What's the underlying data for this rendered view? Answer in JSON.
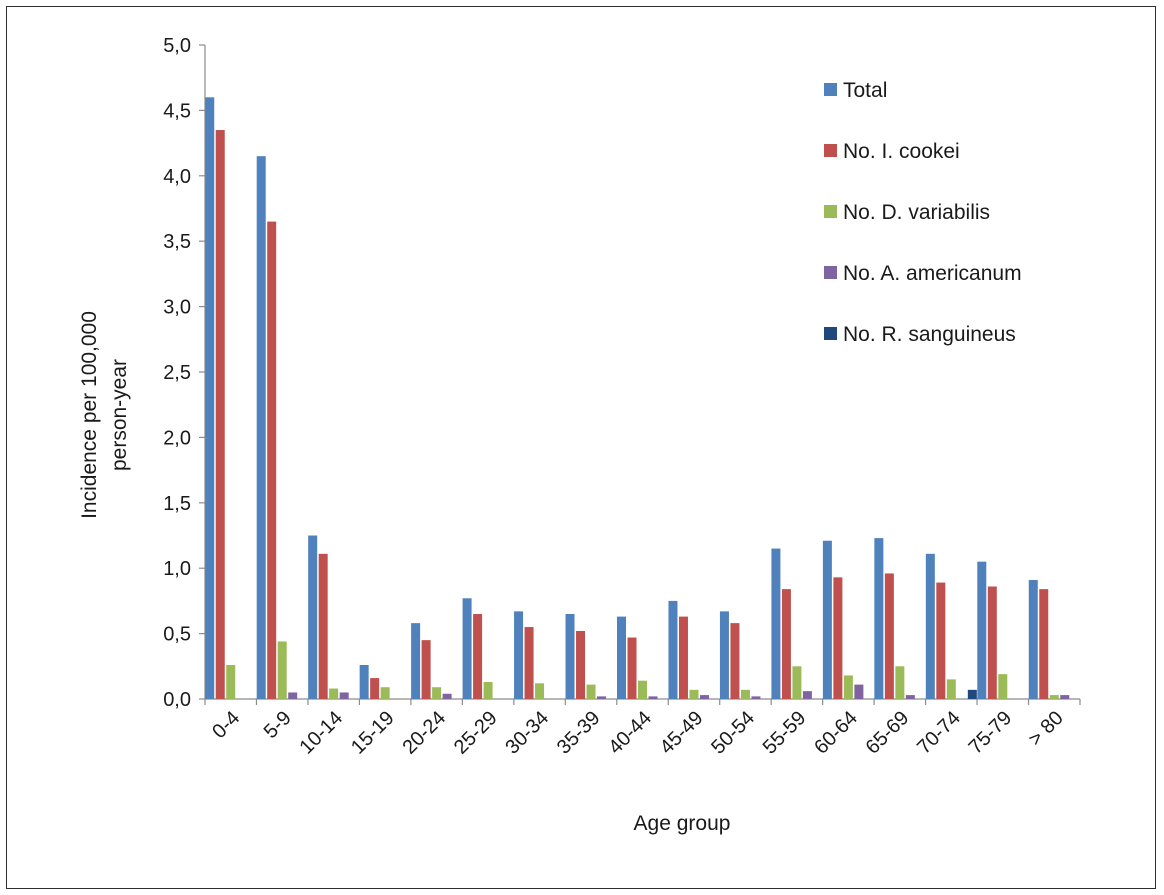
{
  "chart_data": {
    "type": "bar",
    "title": "",
    "xlabel": "Age group",
    "ylabel": [
      "Incidence per 100,000",
      "person-year"
    ],
    "ylim": [
      0,
      5.0
    ],
    "yticks": [
      "0,0",
      "0,5",
      "1,0",
      "1,5",
      "2,0",
      "2,5",
      "3,0",
      "3,5",
      "4,0",
      "4,5",
      "5,0"
    ],
    "grid": false,
    "legend_position": "top-right",
    "categories": [
      "0-4",
      "5-9",
      "10-14",
      "15-19",
      "20-24",
      "25-29",
      "30-34",
      "35-39",
      "40-44",
      "45-49",
      "50-54",
      "55-59",
      "60-64",
      "65-69",
      "70-74",
      "75-79",
      "> 80"
    ],
    "series": [
      {
        "name": "Total",
        "color": "#4f81bd",
        "values": [
          4.6,
          4.15,
          1.25,
          0.26,
          0.58,
          0.77,
          0.67,
          0.65,
          0.63,
          0.75,
          0.67,
          1.15,
          1.21,
          1.23,
          1.11,
          1.05,
          0.91
        ]
      },
      {
        "name": "No. I. cookei",
        "color": "#c0504d",
        "values": [
          4.35,
          3.65,
          1.11,
          0.16,
          0.45,
          0.65,
          0.55,
          0.52,
          0.47,
          0.63,
          0.58,
          0.84,
          0.93,
          0.96,
          0.89,
          0.86,
          0.84
        ]
      },
      {
        "name": "No. D. variabilis",
        "color": "#9bbb59",
        "values": [
          0.26,
          0.44,
          0.08,
          0.09,
          0.09,
          0.13,
          0.12,
          0.11,
          0.14,
          0.07,
          0.07,
          0.25,
          0.18,
          0.25,
          0.15,
          0.19,
          0.03
        ]
      },
      {
        "name": "No. A. americanum",
        "color": "#8064a2",
        "values": [
          0,
          0.05,
          0.05,
          0,
          0.04,
          0,
          0,
          0.02,
          0.02,
          0.03,
          0.02,
          0.06,
          0.11,
          0.03,
          0,
          0,
          0.03
        ]
      },
      {
        "name": "No. R. sanguineus",
        "color": "#1f497d",
        "values": [
          0,
          0,
          0,
          0,
          0,
          0,
          0,
          0,
          0,
          0,
          0,
          0,
          0,
          0,
          0.07,
          0,
          0
        ]
      }
    ]
  }
}
